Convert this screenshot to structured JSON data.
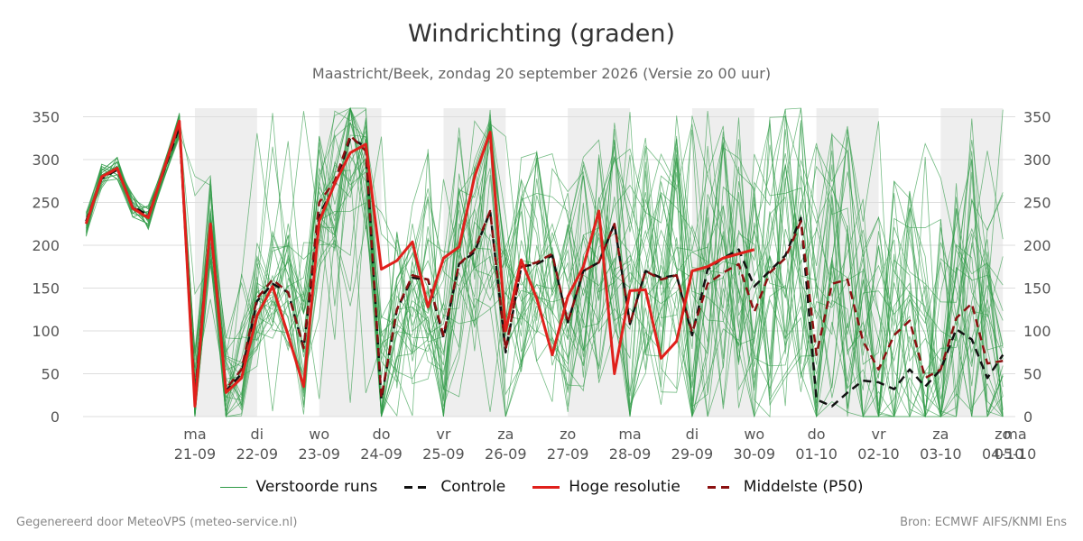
{
  "header": {
    "title": "Windrichting (graden)",
    "subtitle": "Maastricht/Beek, zondag 20 september 2026 (Versie zo 00 uur)"
  },
  "footer": {
    "left": "Gegenereerd door MeteoVPS (meteo-service.nl)",
    "right": "Bron: ECMWF AIFS/KNMI Ens"
  },
  "colors": {
    "ensemble": "#2e9a45",
    "control": "#111111",
    "highres": "#e0201b",
    "median": "#8b1010",
    "shade": "#eeeeee",
    "grid": "#dddddd"
  },
  "legend": [
    {
      "label": "Verstoorde runs",
      "style": "ensemble"
    },
    {
      "label": "Controle",
      "style": "control"
    },
    {
      "label": "Hoge resolutie",
      "style": "highres"
    },
    {
      "label": "Middelste (P50)",
      "style": "median"
    }
  ],
  "chart_data": {
    "type": "line",
    "title": "Windrichting (graden)",
    "ylim": [
      0,
      360
    ],
    "yticks": [
      0,
      50,
      100,
      150,
      200,
      250,
      300,
      350
    ],
    "ylabel_right": true,
    "grid": true,
    "legend_position": "bottom",
    "x_unit": "days since 20-09 00 uur",
    "xlim": [
      -0.8,
      14.2
    ],
    "x_ticks": [
      {
        "x": 1,
        "day": "ma",
        "date": "21-09"
      },
      {
        "x": 2,
        "day": "di",
        "date": "22-09"
      },
      {
        "x": 3,
        "day": "wo",
        "date": "23-09"
      },
      {
        "x": 4,
        "day": "do",
        "date": "24-09"
      },
      {
        "x": 5,
        "day": "vr",
        "date": "25-09"
      },
      {
        "x": 6,
        "day": "za",
        "date": "26-09"
      },
      {
        "x": 7,
        "day": "zo",
        "date": "27-09"
      },
      {
        "x": 8,
        "day": "ma",
        "date": "28-09"
      },
      {
        "x": 9,
        "day": "di",
        "date": "29-09"
      },
      {
        "x": 10,
        "day": "wo",
        "date": "30-09"
      },
      {
        "x": 11,
        "day": "do",
        "date": "01-10"
      },
      {
        "x": 12,
        "day": "vr",
        "date": "02-10"
      },
      {
        "x": 13,
        "day": "za",
        "date": "03-10"
      },
      {
        "x": 14,
        "day": "zo",
        "date": "04-10"
      },
      {
        "x": 15,
        "day": "ma",
        "date": "05-10"
      }
    ],
    "night_shading": [
      [
        1,
        2
      ],
      [
        3,
        4
      ],
      [
        5,
        6
      ],
      [
        7,
        8
      ],
      [
        9,
        10
      ],
      [
        11,
        12
      ],
      [
        13,
        14
      ]
    ],
    "series": [
      {
        "name": "Hoge resolutie",
        "style": "highres",
        "x": [
          -0.75,
          -0.5,
          -0.25,
          0,
          0.25,
          0.75,
          1.0,
          1.25,
          1.5,
          1.75,
          2.0,
          2.25,
          2.5,
          2.75,
          3.0,
          3.25,
          3.5,
          3.75,
          4.0,
          4.25,
          4.5,
          4.75,
          5.0,
          5.25,
          5.5,
          5.75,
          6.0,
          6.25,
          6.5,
          6.75,
          7.0,
          7.25,
          7.5,
          7.75,
          8.0,
          8.25,
          8.5,
          8.75,
          9.0,
          9.25,
          9.5,
          9.75,
          10.0
        ],
        "values": [
          225,
          280,
          290,
          243,
          232,
          345,
          12,
          225,
          28,
          45,
          118,
          152,
          95,
          35,
          228,
          272,
          308,
          318,
          172,
          182,
          204,
          128,
          185,
          198,
          280,
          332,
          100,
          183,
          138,
          72,
          140,
          175,
          240,
          50,
          147,
          148,
          68,
          88,
          170,
          175,
          185,
          190,
          195
        ]
      },
      {
        "name": "Controle",
        "style": "control",
        "x": [
          -0.75,
          -0.5,
          -0.25,
          0,
          0.25,
          0.75,
          1.0,
          1.25,
          1.5,
          1.75,
          2.0,
          2.25,
          2.5,
          2.75,
          3.0,
          3.25,
          3.5,
          3.75,
          4.0,
          4.25,
          4.5,
          4.75,
          5.0,
          5.25,
          5.5,
          5.75,
          6.0,
          6.25,
          6.5,
          6.75,
          7.0,
          7.25,
          7.5,
          7.75,
          8.0,
          8.25,
          8.5,
          8.75,
          9.0,
          9.25,
          9.5,
          9.75,
          10.0,
          10.25,
          10.5,
          10.75,
          11.0,
          11.25,
          11.5,
          11.75,
          12.0,
          12.25,
          12.5,
          12.75,
          13.0,
          13.25,
          13.5,
          13.75,
          14.0
        ],
        "values": [
          228,
          278,
          288,
          245,
          235,
          338,
          20,
          222,
          30,
          50,
          135,
          155,
          145,
          80,
          235,
          270,
          325,
          315,
          20,
          125,
          162,
          160,
          92,
          178,
          192,
          240,
          75,
          175,
          178,
          188,
          110,
          170,
          180,
          225,
          108,
          170,
          162,
          165,
          95,
          172,
          185,
          195,
          152,
          170,
          188,
          232,
          20,
          12,
          28,
          42,
          40,
          32,
          55,
          35,
          55,
          102,
          90,
          45,
          72
        ]
      },
      {
        "name": "Middelste (P50)",
        "style": "median",
        "x": [
          -0.75,
          -0.5,
          -0.25,
          0,
          0.25,
          0.75,
          1.0,
          1.25,
          1.5,
          1.75,
          2.0,
          2.25,
          2.5,
          2.75,
          3.0,
          3.25,
          3.5,
          3.75,
          4.0,
          4.25,
          4.5,
          4.75,
          5.0,
          5.25,
          5.5,
          5.75,
          6.0,
          6.25,
          6.5,
          6.75,
          7.0,
          7.25,
          7.5,
          7.75,
          8.0,
          8.25,
          8.5,
          8.75,
          9.0,
          9.25,
          9.5,
          9.75,
          10.0,
          10.25,
          10.5,
          10.75,
          11.0,
          11.25,
          11.5,
          11.75,
          12.0,
          12.25,
          12.5,
          12.75,
          13.0,
          13.25,
          13.5,
          13.75,
          14.0
        ],
        "values": [
          226,
          279,
          289,
          244,
          233,
          342,
          25,
          225,
          32,
          55,
          138,
          160,
          145,
          80,
          250,
          275,
          328,
          310,
          22,
          125,
          165,
          160,
          95,
          178,
          195,
          240,
          78,
          175,
          180,
          190,
          110,
          170,
          180,
          225,
          108,
          170,
          160,
          165,
          98,
          155,
          168,
          178,
          122,
          168,
          185,
          228,
          72,
          155,
          160,
          88,
          55,
          95,
          112,
          45,
          55,
          115,
          132,
          62,
          65
        ]
      }
    ]
  }
}
